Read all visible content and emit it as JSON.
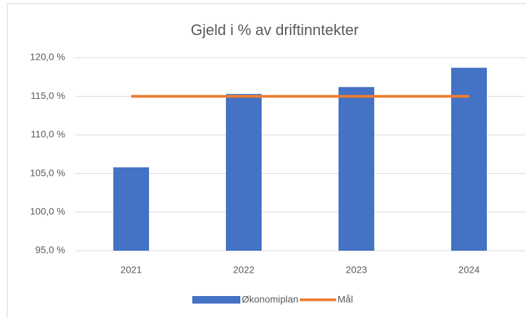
{
  "chart_data": {
    "type": "bar",
    "title": "Gjeld i % av driftinntekter",
    "categories": [
      "2021",
      "2022",
      "2023",
      "2024"
    ],
    "series": [
      {
        "name": "Økonomiplan",
        "type": "bar",
        "color": "#4472c4",
        "values": [
          105.8,
          115.3,
          116.2,
          118.7
        ]
      },
      {
        "name": "Mål",
        "type": "line",
        "color": "#ed7d31",
        "values": [
          115,
          115,
          115,
          115
        ]
      }
    ],
    "ylim": [
      95,
      120
    ],
    "yticks": [
      {
        "value": 95,
        "label": "95,0 %"
      },
      {
        "value": 100,
        "label": "100,0 %"
      },
      {
        "value": 105,
        "label": "105,0 %"
      },
      {
        "value": 110,
        "label": "110,0 %"
      },
      {
        "value": 115,
        "label": "115,0 %"
      },
      {
        "value": 120,
        "label": "120,0 %"
      }
    ],
    "grid": true,
    "legend": "bottom"
  }
}
